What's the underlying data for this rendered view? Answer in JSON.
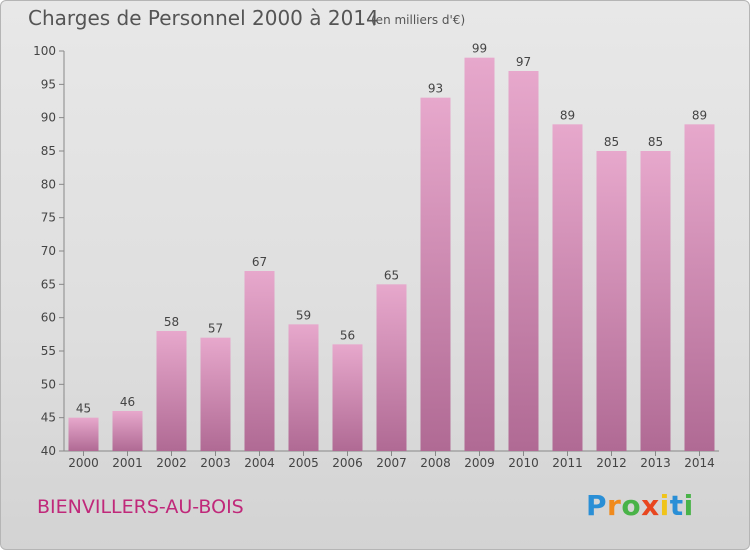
{
  "header": {
    "title": "Charges de Personnel 2000 à 2014",
    "subtitle": "(en milliers d'€)"
  },
  "footer": {
    "commune": "BIENVILLERS-AU-BOIS",
    "logo": {
      "letters": [
        "P",
        "r",
        "o",
        "x",
        "i",
        "t",
        "i"
      ],
      "colors": [
        "#2a8fd6",
        "#f08a1c",
        "#49b348",
        "#e8461f",
        "#f0c419",
        "#2a8fd6",
        "#49b348"
      ]
    }
  },
  "colors": {
    "bar_top": "#e7a8cc",
    "bar_bottom": "#b06a94",
    "title": "#555555",
    "commune": "#c0287a"
  },
  "chart_data": {
    "type": "bar",
    "title": "Charges de Personnel 2000 à 2014",
    "subtitle": "(en milliers d'€)",
    "categories": [
      "2000",
      "2001",
      "2002",
      "2003",
      "2004",
      "2005",
      "2006",
      "2007",
      "2008",
      "2009",
      "2010",
      "2011",
      "2012",
      "2013",
      "2014"
    ],
    "values": [
      45,
      46,
      58,
      57,
      67,
      59,
      56,
      65,
      93,
      99,
      97,
      89,
      85,
      85,
      89
    ],
    "ylim": [
      40,
      100
    ],
    "yticks": [
      40,
      45,
      50,
      55,
      60,
      65,
      70,
      75,
      80,
      85,
      90,
      95,
      100
    ],
    "grid": false,
    "data_labels": true
  }
}
